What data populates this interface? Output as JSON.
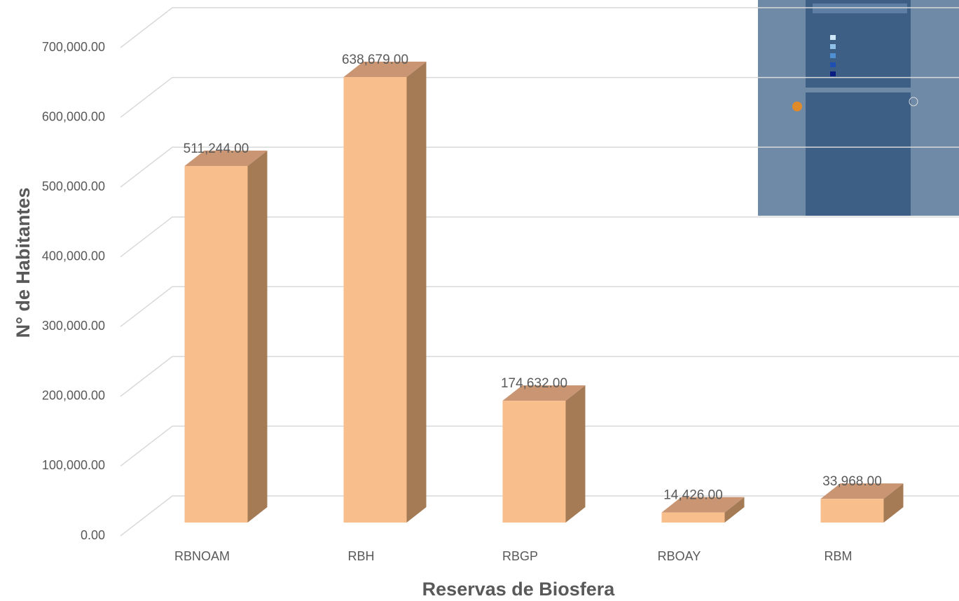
{
  "chart_data": {
    "type": "bar3d",
    "x_label": "Reservas de Biosfera",
    "y_label": "N° de Habitantes",
    "categories": [
      "RBNOAM",
      "RBH",
      "RBGP",
      "RBOAY",
      "RBM"
    ],
    "values": [
      511244,
      638679,
      174632,
      14426,
      33968
    ],
    "value_labels": [
      "511,244.00",
      "638,679.00",
      "174,632.00",
      "14,426.00",
      "33,968.00"
    ],
    "colors": {
      "front": "#f8be8c",
      "side": "#a57b56",
      "top": "#c99572"
    },
    "ylim": [
      0,
      700000
    ],
    "yticks": [
      {
        "value": 0,
        "label": "0.00"
      },
      {
        "value": 100000,
        "label": "100,000.00"
      },
      {
        "value": 200000,
        "label": "200,000.00"
      },
      {
        "value": 300000,
        "label": "300,000.00"
      },
      {
        "value": 400000,
        "label": "400,000.00"
      },
      {
        "value": 500000,
        "label": "500,000.00"
      },
      {
        "value": 600000,
        "label": "600,000.00"
      },
      {
        "value": 700000,
        "label": "700,000.00"
      }
    ],
    "grid": true
  }
}
